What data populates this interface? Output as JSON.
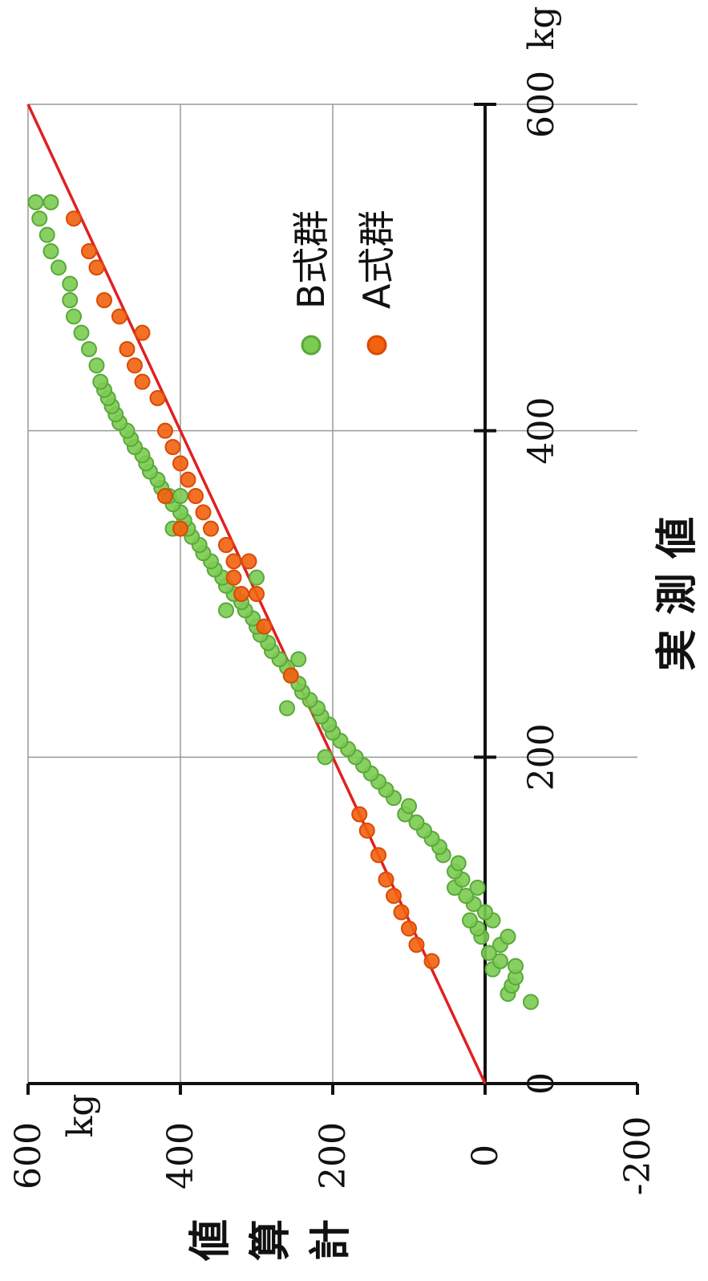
{
  "chart_data": {
    "type": "scatter",
    "orientation_note": "image rotated 90° counter-clockwise",
    "xlabel": "実 測 値",
    "ylabel": "計 算 値",
    "x_unit": "kg",
    "y_unit": "kg",
    "xlim": [
      0,
      600
    ],
    "ylim": [
      -200,
      600
    ],
    "x_ticks": [
      "0",
      "200",
      "400",
      "600"
    ],
    "y_ticks": [
      "-200",
      "0",
      "200",
      "400",
      "600"
    ],
    "grid": true,
    "legend_position": "upper-left",
    "series": [
      {
        "name": "B式群",
        "color": "#7ccb52",
        "stroke": "#5aa83a",
        "points": [
          [
            50,
            -60
          ],
          [
            55,
            -30
          ],
          [
            60,
            -35
          ],
          [
            65,
            -40
          ],
          [
            70,
            -10
          ],
          [
            72,
            -40
          ],
          [
            75,
            -20
          ],
          [
            80,
            -5
          ],
          [
            85,
            -20
          ],
          [
            90,
            5
          ],
          [
            90,
            -30
          ],
          [
            95,
            10
          ],
          [
            100,
            -10
          ],
          [
            100,
            20
          ],
          [
            105,
            0
          ],
          [
            110,
            15
          ],
          [
            115,
            25
          ],
          [
            120,
            10
          ],
          [
            120,
            40
          ],
          [
            125,
            30
          ],
          [
            130,
            40
          ],
          [
            135,
            35
          ],
          [
            140,
            55
          ],
          [
            145,
            60
          ],
          [
            150,
            70
          ],
          [
            155,
            80
          ],
          [
            160,
            90
          ],
          [
            165,
            105
          ],
          [
            170,
            100
          ],
          [
            175,
            120
          ],
          [
            180,
            130
          ],
          [
            185,
            140
          ],
          [
            190,
            150
          ],
          [
            195,
            160
          ],
          [
            200,
            170
          ],
          [
            205,
            180
          ],
          [
            210,
            190
          ],
          [
            215,
            200
          ],
          [
            220,
            205
          ],
          [
            225,
            215
          ],
          [
            230,
            220
          ],
          [
            235,
            230
          ],
          [
            240,
            240
          ],
          [
            245,
            245
          ],
          [
            250,
            255
          ],
          [
            255,
            260
          ],
          [
            260,
            270
          ],
          [
            265,
            280
          ],
          [
            270,
            285
          ],
          [
            275,
            295
          ],
          [
            280,
            300
          ],
          [
            285,
            305
          ],
          [
            290,
            315
          ],
          [
            295,
            320
          ],
          [
            300,
            330
          ],
          [
            305,
            340
          ],
          [
            310,
            345
          ],
          [
            315,
            355
          ],
          [
            320,
            360
          ],
          [
            325,
            370
          ],
          [
            330,
            375
          ],
          [
            335,
            385
          ],
          [
            340,
            390
          ],
          [
            345,
            395
          ],
          [
            350,
            400
          ],
          [
            355,
            410
          ],
          [
            360,
            415
          ],
          [
            365,
            425
          ],
          [
            370,
            430
          ],
          [
            375,
            440
          ],
          [
            380,
            445
          ],
          [
            385,
            450
          ],
          [
            390,
            460
          ],
          [
            395,
            465
          ],
          [
            400,
            470
          ],
          [
            405,
            480
          ],
          [
            410,
            485
          ],
          [
            415,
            490
          ],
          [
            420,
            495
          ],
          [
            425,
            500
          ],
          [
            430,
            505
          ],
          [
            440,
            510
          ],
          [
            450,
            520
          ],
          [
            460,
            530
          ],
          [
            470,
            540
          ],
          [
            480,
            545
          ],
          [
            490,
            545
          ],
          [
            500,
            560
          ],
          [
            510,
            570
          ],
          [
            520,
            575
          ],
          [
            530,
            585
          ],
          [
            540,
            590
          ],
          [
            540,
            570
          ],
          [
            200,
            210
          ],
          [
            230,
            260
          ],
          [
            260,
            245
          ],
          [
            290,
            340
          ],
          [
            310,
            300
          ],
          [
            340,
            410
          ],
          [
            360,
            400
          ]
        ]
      },
      {
        "name": "A式群",
        "color": "#f2620f",
        "stroke": "#d94a04",
        "points": [
          [
            75,
            70
          ],
          [
            85,
            90
          ],
          [
            95,
            100
          ],
          [
            105,
            110
          ],
          [
            115,
            120
          ],
          [
            125,
            130
          ],
          [
            140,
            140
          ],
          [
            155,
            155
          ],
          [
            165,
            165
          ],
          [
            250,
            255
          ],
          [
            280,
            290
          ],
          [
            300,
            320
          ],
          [
            310,
            330
          ],
          [
            320,
            330
          ],
          [
            330,
            340
          ],
          [
            340,
            360
          ],
          [
            350,
            370
          ],
          [
            360,
            380
          ],
          [
            370,
            390
          ],
          [
            380,
            400
          ],
          [
            390,
            410
          ],
          [
            400,
            420
          ],
          [
            420,
            430
          ],
          [
            430,
            450
          ],
          [
            440,
            460
          ],
          [
            450,
            470
          ],
          [
            470,
            480
          ],
          [
            480,
            500
          ],
          [
            500,
            510
          ],
          [
            510,
            520
          ],
          [
            530,
            540
          ],
          [
            460,
            450
          ],
          [
            340,
            400
          ],
          [
            360,
            420
          ],
          [
            300,
            300
          ],
          [
            320,
            310
          ]
        ]
      }
    ],
    "reference_line": {
      "from": [
        0,
        0
      ],
      "to": [
        600,
        600
      ],
      "color": "#e02020"
    }
  }
}
